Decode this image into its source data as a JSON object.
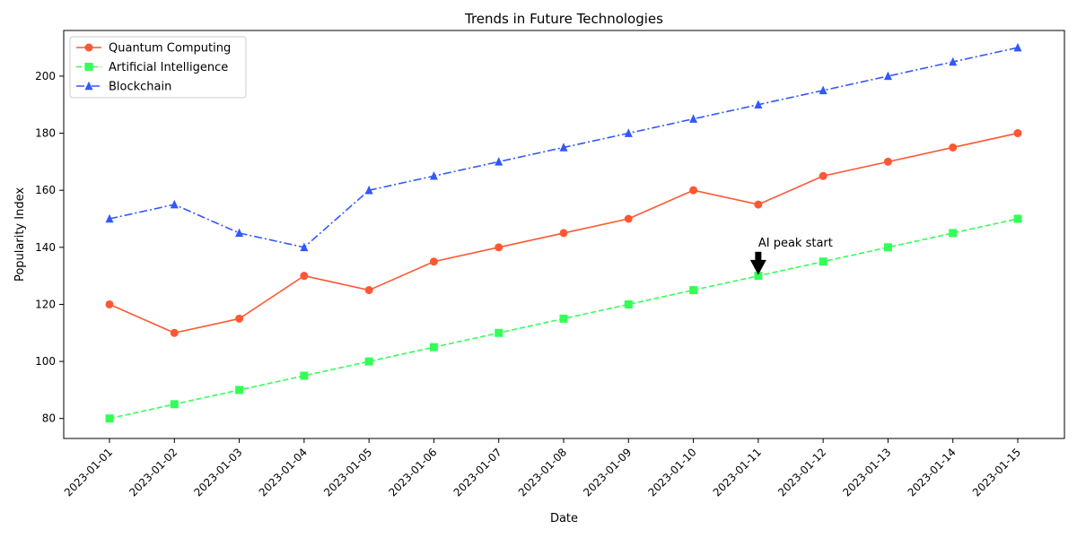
{
  "chart_data": {
    "type": "line",
    "title": "Trends in Future Technologies",
    "xlabel": "Date",
    "ylabel": "Popularity Index",
    "categories": [
      "2023-01-01",
      "2023-01-02",
      "2023-01-03",
      "2023-01-04",
      "2023-01-05",
      "2023-01-06",
      "2023-01-07",
      "2023-01-08",
      "2023-01-09",
      "2023-01-10",
      "2023-01-11",
      "2023-01-12",
      "2023-01-13",
      "2023-01-14",
      "2023-01-15"
    ],
    "ylim": [
      73,
      216
    ],
    "yticks": [
      80,
      100,
      120,
      140,
      160,
      180,
      200
    ],
    "grid": false,
    "legend_position": "top-left",
    "series": [
      {
        "name": "Quantum Computing",
        "color": "#ff5733",
        "line_style": "solid",
        "marker": "circle",
        "values": [
          120,
          110,
          115,
          130,
          125,
          135,
          140,
          145,
          150,
          160,
          155,
          165,
          170,
          175,
          180
        ]
      },
      {
        "name": "Artificial Intelligence",
        "color": "#33ff57",
        "line_style": "dashed",
        "marker": "square",
        "values": [
          80,
          85,
          90,
          95,
          100,
          105,
          110,
          115,
          120,
          125,
          130,
          135,
          140,
          145,
          150
        ]
      },
      {
        "name": "Blockchain",
        "color": "#3357ff",
        "line_style": "dashdot",
        "marker": "triangle",
        "values": [
          150,
          155,
          145,
          140,
          160,
          165,
          170,
          175,
          180,
          185,
          190,
          195,
          200,
          205,
          210
        ]
      }
    ],
    "annotations": [
      {
        "text": "AI peak start",
        "x": "2023-01-11",
        "y": 130,
        "arrow_icon": "down-arrow-icon"
      }
    ]
  }
}
